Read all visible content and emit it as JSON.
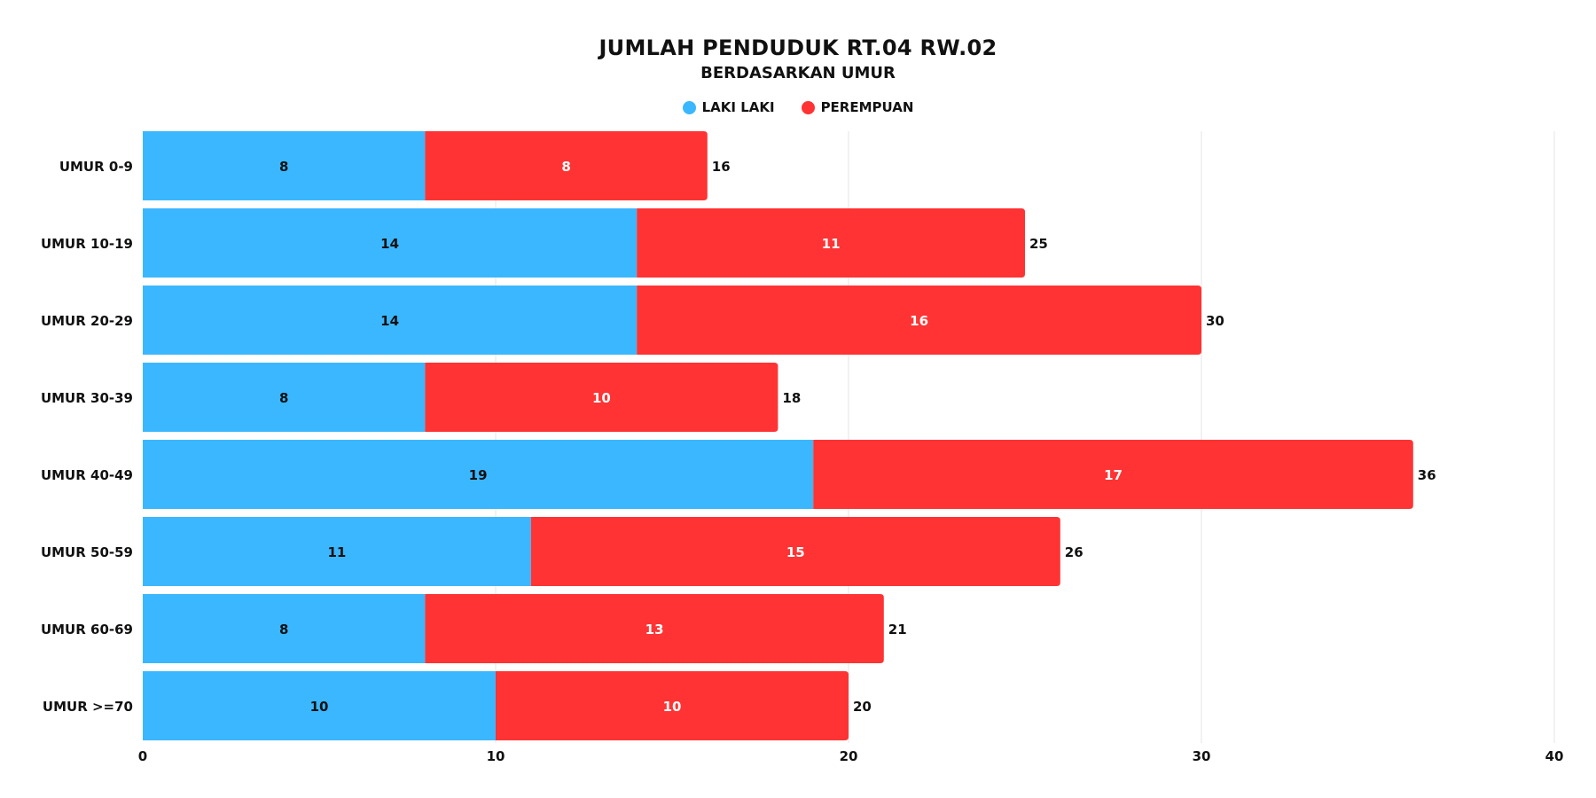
{
  "chart_data": {
    "type": "bar",
    "orientation": "horizontal",
    "stacked": true,
    "title": "JUMLAH PENDUDUK RT.04 RW.02",
    "subtitle": "BERDASARKAN UMUR",
    "categories": [
      "UMUR 0-9",
      "UMUR 10-19",
      "UMUR 20-29",
      "UMUR 30-39",
      "UMUR 40-49",
      "UMUR 50-59",
      "UMUR 60-69",
      "UMUR >=70"
    ],
    "series": [
      {
        "name": "LAKI LAKI",
        "color": "#3bb7ff",
        "values": [
          8,
          14,
          14,
          8,
          19,
          11,
          8,
          10
        ]
      },
      {
        "name": "PEREMPUAN",
        "color": "#ff3333",
        "values": [
          8,
          11,
          16,
          10,
          17,
          15,
          13,
          10
        ]
      }
    ],
    "totals": [
      16,
      25,
      30,
      18,
      36,
      26,
      21,
      20
    ],
    "xlim": [
      0,
      40
    ],
    "xticks": [
      0,
      10,
      20,
      30,
      40
    ],
    "grid": true,
    "legend_position": "top-center"
  }
}
